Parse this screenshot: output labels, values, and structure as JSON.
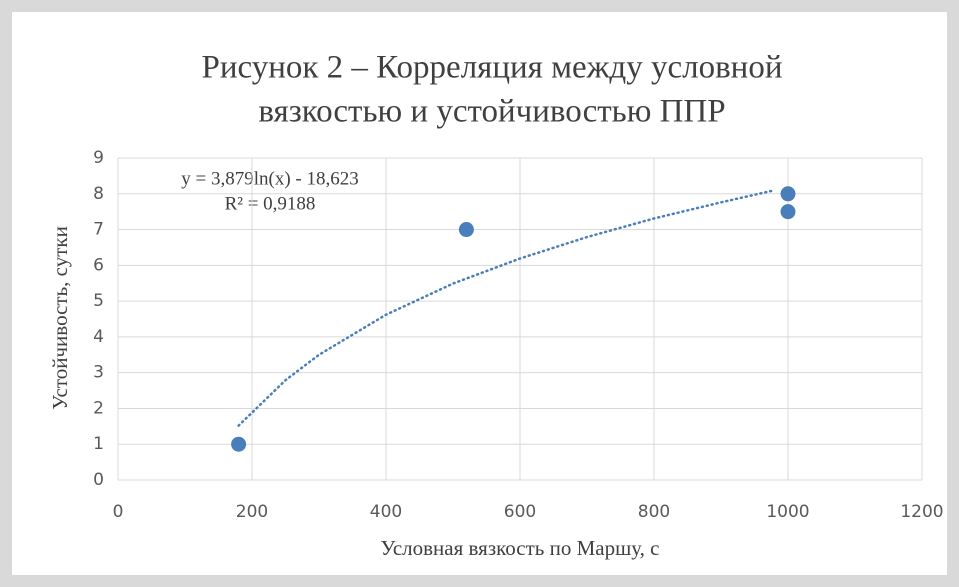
{
  "chart_data": {
    "type": "scatter",
    "title": [
      "Рисунок 2 – Корреляция между условной",
      "вязкостью и устойчивостью ППР"
    ],
    "x_label": "Условная вязкость по Маршу, с",
    "y_label": "Устойчивость, сутки",
    "annotations": [
      "y = 3,879ln(x) - 18,623",
      "R² = 0,9188"
    ],
    "series": [
      {
        "color": "#4a7ebb",
        "x": [
          180,
          520,
          1000,
          1000
        ],
        "values": [
          1,
          7,
          8,
          7.5
        ]
      }
    ],
    "trendline": {
      "color": "#4a7ebb",
      "x": [
        180,
        250,
        300,
        400,
        500,
        600,
        700,
        800,
        900,
        980
      ],
      "values": [
        1.52,
        2.79,
        3.5,
        4.62,
        5.49,
        6.19,
        6.79,
        7.31,
        7.76,
        8.1
      ]
    },
    "xlim": [
      0,
      1200
    ],
    "xticks": [
      0,
      200,
      400,
      600,
      800,
      1000,
      1200
    ],
    "ylim": [
      0,
      9
    ],
    "yticks": [
      0,
      1,
      2,
      3,
      4,
      5,
      6,
      7,
      8,
      9
    ],
    "grid": true
  }
}
